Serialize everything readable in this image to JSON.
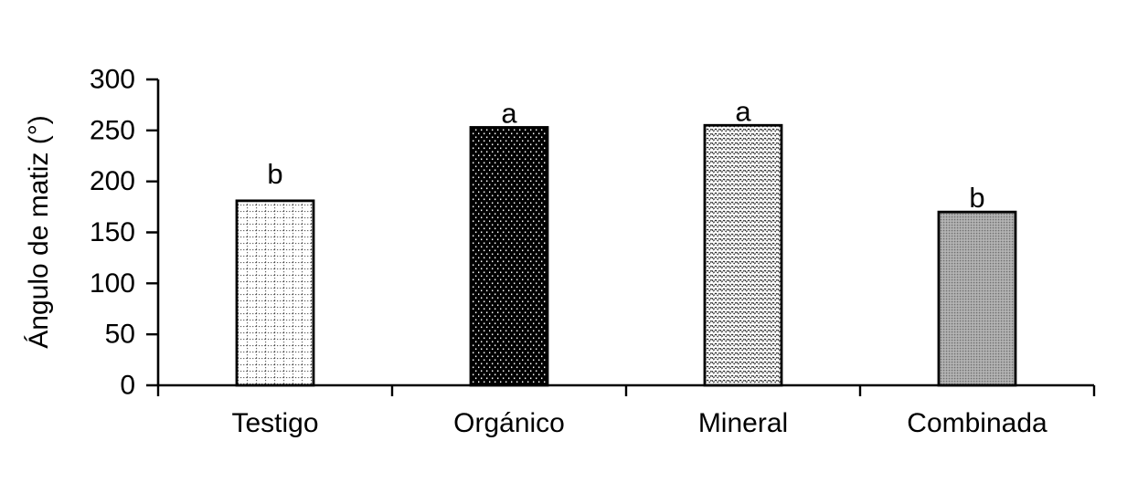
{
  "chart_data": {
    "type": "bar",
    "title": "",
    "ylabel": "Ángulo de matiz (°)",
    "xlabel": "",
    "categories": [
      "Testigo",
      "Orgánico",
      "Mineral",
      "Combinada"
    ],
    "values": [
      181,
      253,
      255,
      170
    ],
    "sig_letters": [
      "b",
      "a",
      "a",
      "b"
    ],
    "yticks": [
      "0",
      "50",
      "100",
      "150",
      "200",
      "250",
      "300"
    ],
    "ylim": [
      0,
      300
    ],
    "grid": false,
    "legend": "none",
    "bar_fill_patterns": [
      "dotted-grid-on-white",
      "white-dots-on-black",
      "wave-lines-on-white",
      "gray-dither"
    ],
    "colors": {
      "axis": "#000000",
      "text": "#000000",
      "background": "#ffffff",
      "pattern_dark": "#222222",
      "pattern_gray": "#a8a8a8"
    }
  }
}
